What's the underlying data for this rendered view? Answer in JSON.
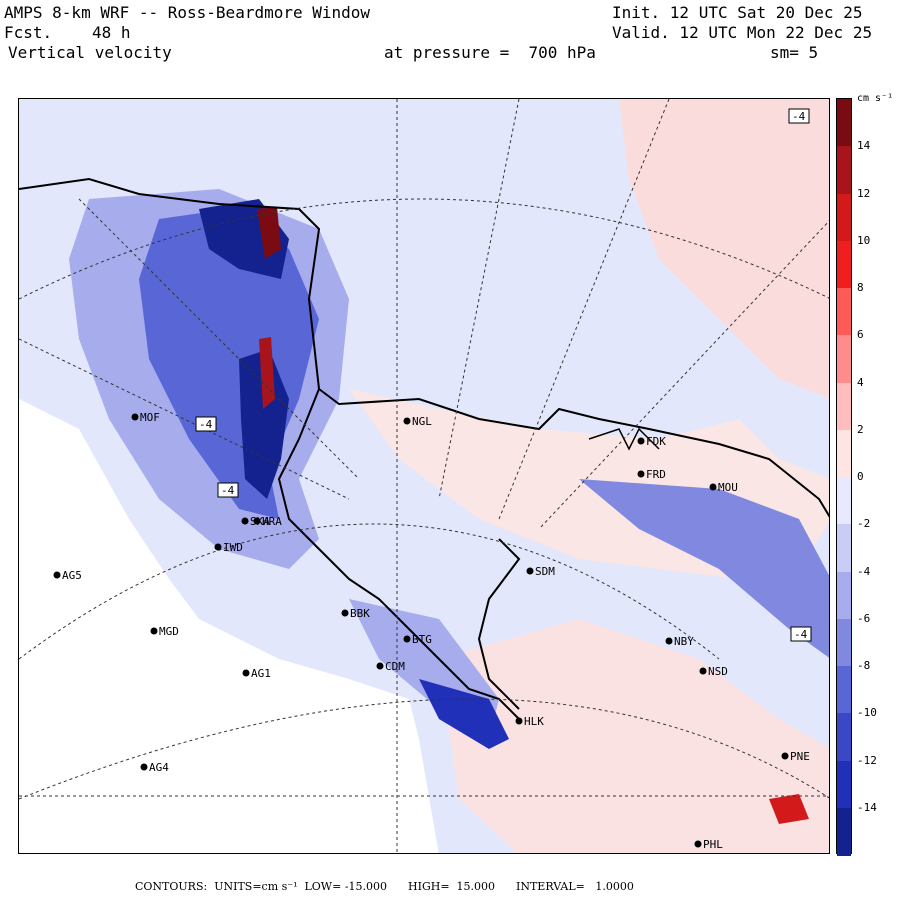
{
  "header": {
    "title": "AMPS 8-km WRF -- Ross-Beardmore Window",
    "fcst_label": "Fcst.",
    "fcst_value": "48 h",
    "field": "Vertical velocity",
    "pressure": "at pressure =  700 hPa",
    "init": "Init. 12 UTC Sat 20 Dec 25",
    "valid": "Valid. 12 UTC Mon 22 Dec 25",
    "smoothing": "sm= 5"
  },
  "colorbar": {
    "units": "cm s⁻¹",
    "ticks": [
      "14",
      "12",
      "10",
      "8",
      "6",
      "4",
      "2",
      "0",
      "-2",
      "-4",
      "-6",
      "-8",
      "-10",
      "-12",
      "-14"
    ],
    "colors": [
      "#7a0b12",
      "#a8141b",
      "#d21a1a",
      "#f01e1e",
      "#ff5a5a",
      "#ff8c8c",
      "#ffbdbd",
      "#ffe4e4",
      "#e8e8ff",
      "#c9ccf4",
      "#a7acec",
      "#8088e0",
      "#5966d6",
      "#3a48c8",
      "#2030b8",
      "#13228f"
    ]
  },
  "stations": [
    {
      "name": "NGL"
    },
    {
      "name": "MOF"
    },
    {
      "name": "FDK"
    },
    {
      "name": "FRD"
    },
    {
      "name": "MOU"
    },
    {
      "name": "IWD"
    },
    {
      "name": "AG5"
    },
    {
      "name": "SDM"
    },
    {
      "name": "MGD"
    },
    {
      "name": "AG1"
    },
    {
      "name": "NBY"
    },
    {
      "name": "NSD"
    },
    {
      "name": "HLK"
    },
    {
      "name": "AG4"
    },
    {
      "name": "PNE"
    },
    {
      "name": "PHL"
    },
    {
      "name": "BBK"
    },
    {
      "name": "CDM"
    },
    {
      "name": "SKA"
    },
    {
      "name": "HRA"
    },
    {
      "name": "BTG"
    }
  ],
  "contour_labels": [
    "-4",
    "-4",
    "-4",
    "-4"
  ],
  "footer": {
    "text": "CONTOURS:  UNITS=cm s⁻¹  LOW= -15.000      HIGH=  15.000      INTERVAL=   1.0000"
  }
}
